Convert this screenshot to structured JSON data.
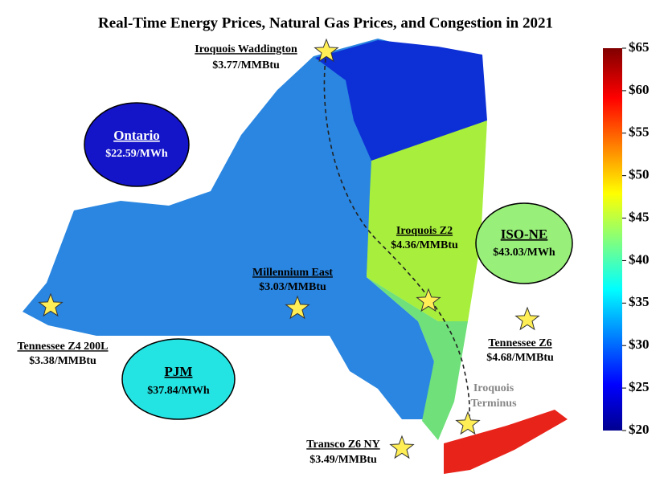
{
  "title": "Real-Time Energy Prices, Natural Gas Prices, and Congestion in 2021",
  "regions": [
    {
      "name": "Ontario",
      "price": "$22.59/MWh"
    },
    {
      "name": "PJM",
      "price": "$37.84/MWh"
    },
    {
      "name": "ISO-NE",
      "price": "$43.03/MWh"
    }
  ],
  "hubs": [
    {
      "name": "Iroquois Waddington",
      "price": "$3.77/MMBtu"
    },
    {
      "name": "Iroquois Z2",
      "price": "$4.36/MMBtu"
    },
    {
      "name": "Millennium East",
      "price": "$3.03/MMBtu"
    },
    {
      "name": "Tennessee Z4 200L",
      "price": "$3.38/MMBtu"
    },
    {
      "name": "Tennessee Z6",
      "price": "$4.68/MMBtu"
    },
    {
      "name": "Transco Z6 NY",
      "price": "$3.49/MMBtu"
    }
  ],
  "terminus": [
    "Iroquois",
    "Terminus"
  ],
  "colorbar": {
    "lim": [
      20,
      65
    ],
    "ticks": [
      {
        "value": 20,
        "label": "$20"
      },
      {
        "value": 25,
        "label": "$25"
      },
      {
        "value": 30,
        "label": "$30"
      },
      {
        "value": 35,
        "label": "$35"
      },
      {
        "value": 40,
        "label": "$40"
      },
      {
        "value": 45,
        "label": "$45"
      },
      {
        "value": 50,
        "label": "$50"
      },
      {
        "value": 55,
        "label": "$55"
      },
      {
        "value": 60,
        "label": "$60"
      },
      {
        "value": 65,
        "label": "$65"
      }
    ]
  }
}
